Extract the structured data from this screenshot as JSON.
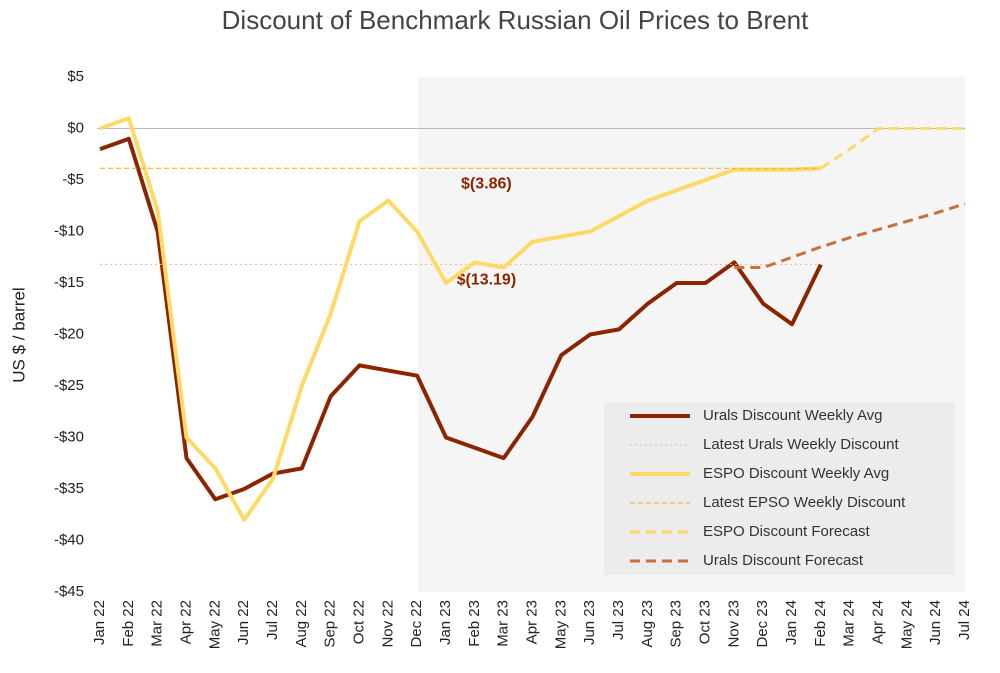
{
  "chart_data": {
    "type": "line",
    "title": "Discount of Benchmark Russian Oil Prices to Brent",
    "y_label": "US $ / barrel",
    "categories": [
      "Jan 22",
      "Feb 22",
      "Mar 22",
      "Apr 22",
      "May 22",
      "Jun 22",
      "Jul 22",
      "Aug 22",
      "Sep 22",
      "Oct 22",
      "Nov 22",
      "Dec 22",
      "Jan 23",
      "Feb 23",
      "Mar 23",
      "Apr 23",
      "May 23",
      "Jun 23",
      "Jul 23",
      "Aug 23",
      "Sep 23",
      "Oct 23",
      "Nov 23",
      "Dec 23",
      "Jan 24",
      "Feb 24",
      "Mar 24",
      "Apr 24",
      "May 24",
      "Jun 24",
      "Jul 24"
    ],
    "ylim": [
      -45,
      5
    ],
    "yticks": [
      {
        "value": 5,
        "label": "$5"
      },
      {
        "value": 0,
        "label": "$0"
      },
      {
        "value": -5,
        "label": "-$5"
      },
      {
        "value": -10,
        "label": "-$10"
      },
      {
        "value": -15,
        "label": "-$15"
      },
      {
        "value": -20,
        "label": "-$20"
      },
      {
        "value": -25,
        "label": "-$25"
      },
      {
        "value": -30,
        "label": "-$30"
      },
      {
        "value": -35,
        "label": "-$35"
      },
      {
        "value": -40,
        "label": "-$40"
      },
      {
        "value": -45,
        "label": "-$45"
      }
    ],
    "series": [
      {
        "name": "Urals Discount Weekly Avg",
        "color": "#8b2500",
        "style": "solid",
        "width": 4,
        "values": [
          -2,
          -1,
          -10,
          -32,
          -36,
          -35,
          -33.5,
          -33,
          -26,
          -23,
          -23.5,
          -24,
          -30,
          -31,
          -32,
          -28,
          -22,
          -20,
          -19.5,
          -17,
          -15,
          -15,
          -13,
          -17,
          -19,
          -13.2,
          null,
          null,
          null,
          null,
          null
        ]
      },
      {
        "name": "Latest Urals Weekly Discount",
        "color": "#f0b48c",
        "style": "dotted",
        "width": 1,
        "value": -13.19,
        "value_label": "$(13.19)"
      },
      {
        "name": "ESPO Discount Weekly Avg",
        "color": "#ffd966",
        "style": "solid",
        "width": 4,
        "values": [
          0,
          1,
          -8,
          -30,
          -33,
          -38,
          -34,
          -25,
          -18,
          -9,
          -7,
          -10,
          -15,
          -13,
          -13.5,
          -11,
          -10.5,
          -10,
          -8.5,
          -7,
          -6,
          -5,
          -4,
          -4,
          -4,
          -3.86,
          null,
          null,
          null,
          null,
          null
        ]
      },
      {
        "name": "Latest EPSO Weekly Discount",
        "color": "#f0b000",
        "style": "dashed",
        "width": 1,
        "value": -3.86,
        "value_label": "$(3.86)"
      },
      {
        "name": "ESPO Discount Forecast",
        "color": "#ffd966",
        "style": "longdash",
        "width": 3,
        "values": [
          null,
          null,
          null,
          null,
          null,
          null,
          null,
          null,
          null,
          null,
          null,
          null,
          null,
          null,
          null,
          null,
          null,
          null,
          null,
          null,
          null,
          null,
          null,
          null,
          null,
          -3.86,
          -2,
          0,
          0,
          0,
          0
        ]
      },
      {
        "name": "Urals Discount Forecast",
        "color": "#c8703c",
        "style": "longdash",
        "width": 3,
        "values": [
          null,
          null,
          null,
          null,
          null,
          null,
          null,
          null,
          null,
          null,
          null,
          null,
          null,
          null,
          null,
          null,
          null,
          null,
          null,
          null,
          null,
          null,
          -13.5,
          -13.5,
          -12.5,
          -11.5,
          -10.6,
          -9.8,
          -9,
          -8.2,
          -7.3
        ]
      }
    ]
  }
}
